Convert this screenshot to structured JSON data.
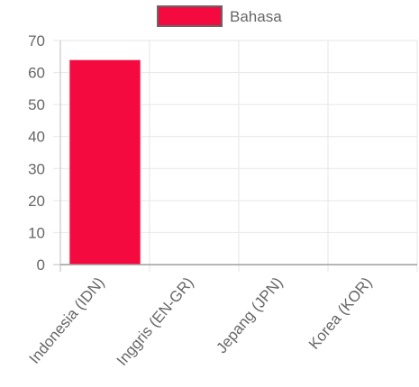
{
  "chart_data": {
    "type": "bar",
    "categories": [
      "Indonesia (IDN)",
      "Inggris (EN-GR)",
      "Jepang (JPN)",
      "Korea (KOR)"
    ],
    "series": [
      {
        "name": "Bahasa",
        "values": [
          64,
          0,
          0,
          0
        ],
        "color": "#f50a40",
        "border_color": "#e7e7e7"
      }
    ],
    "ylim": [
      0,
      70
    ],
    "y_ticks": [
      0,
      10,
      20,
      30,
      40,
      50,
      60,
      70
    ],
    "grid": true,
    "legend_position": "top-center",
    "legend_swatch_border": "#666666",
    "title": "",
    "xlabel": "",
    "ylabel": ""
  }
}
